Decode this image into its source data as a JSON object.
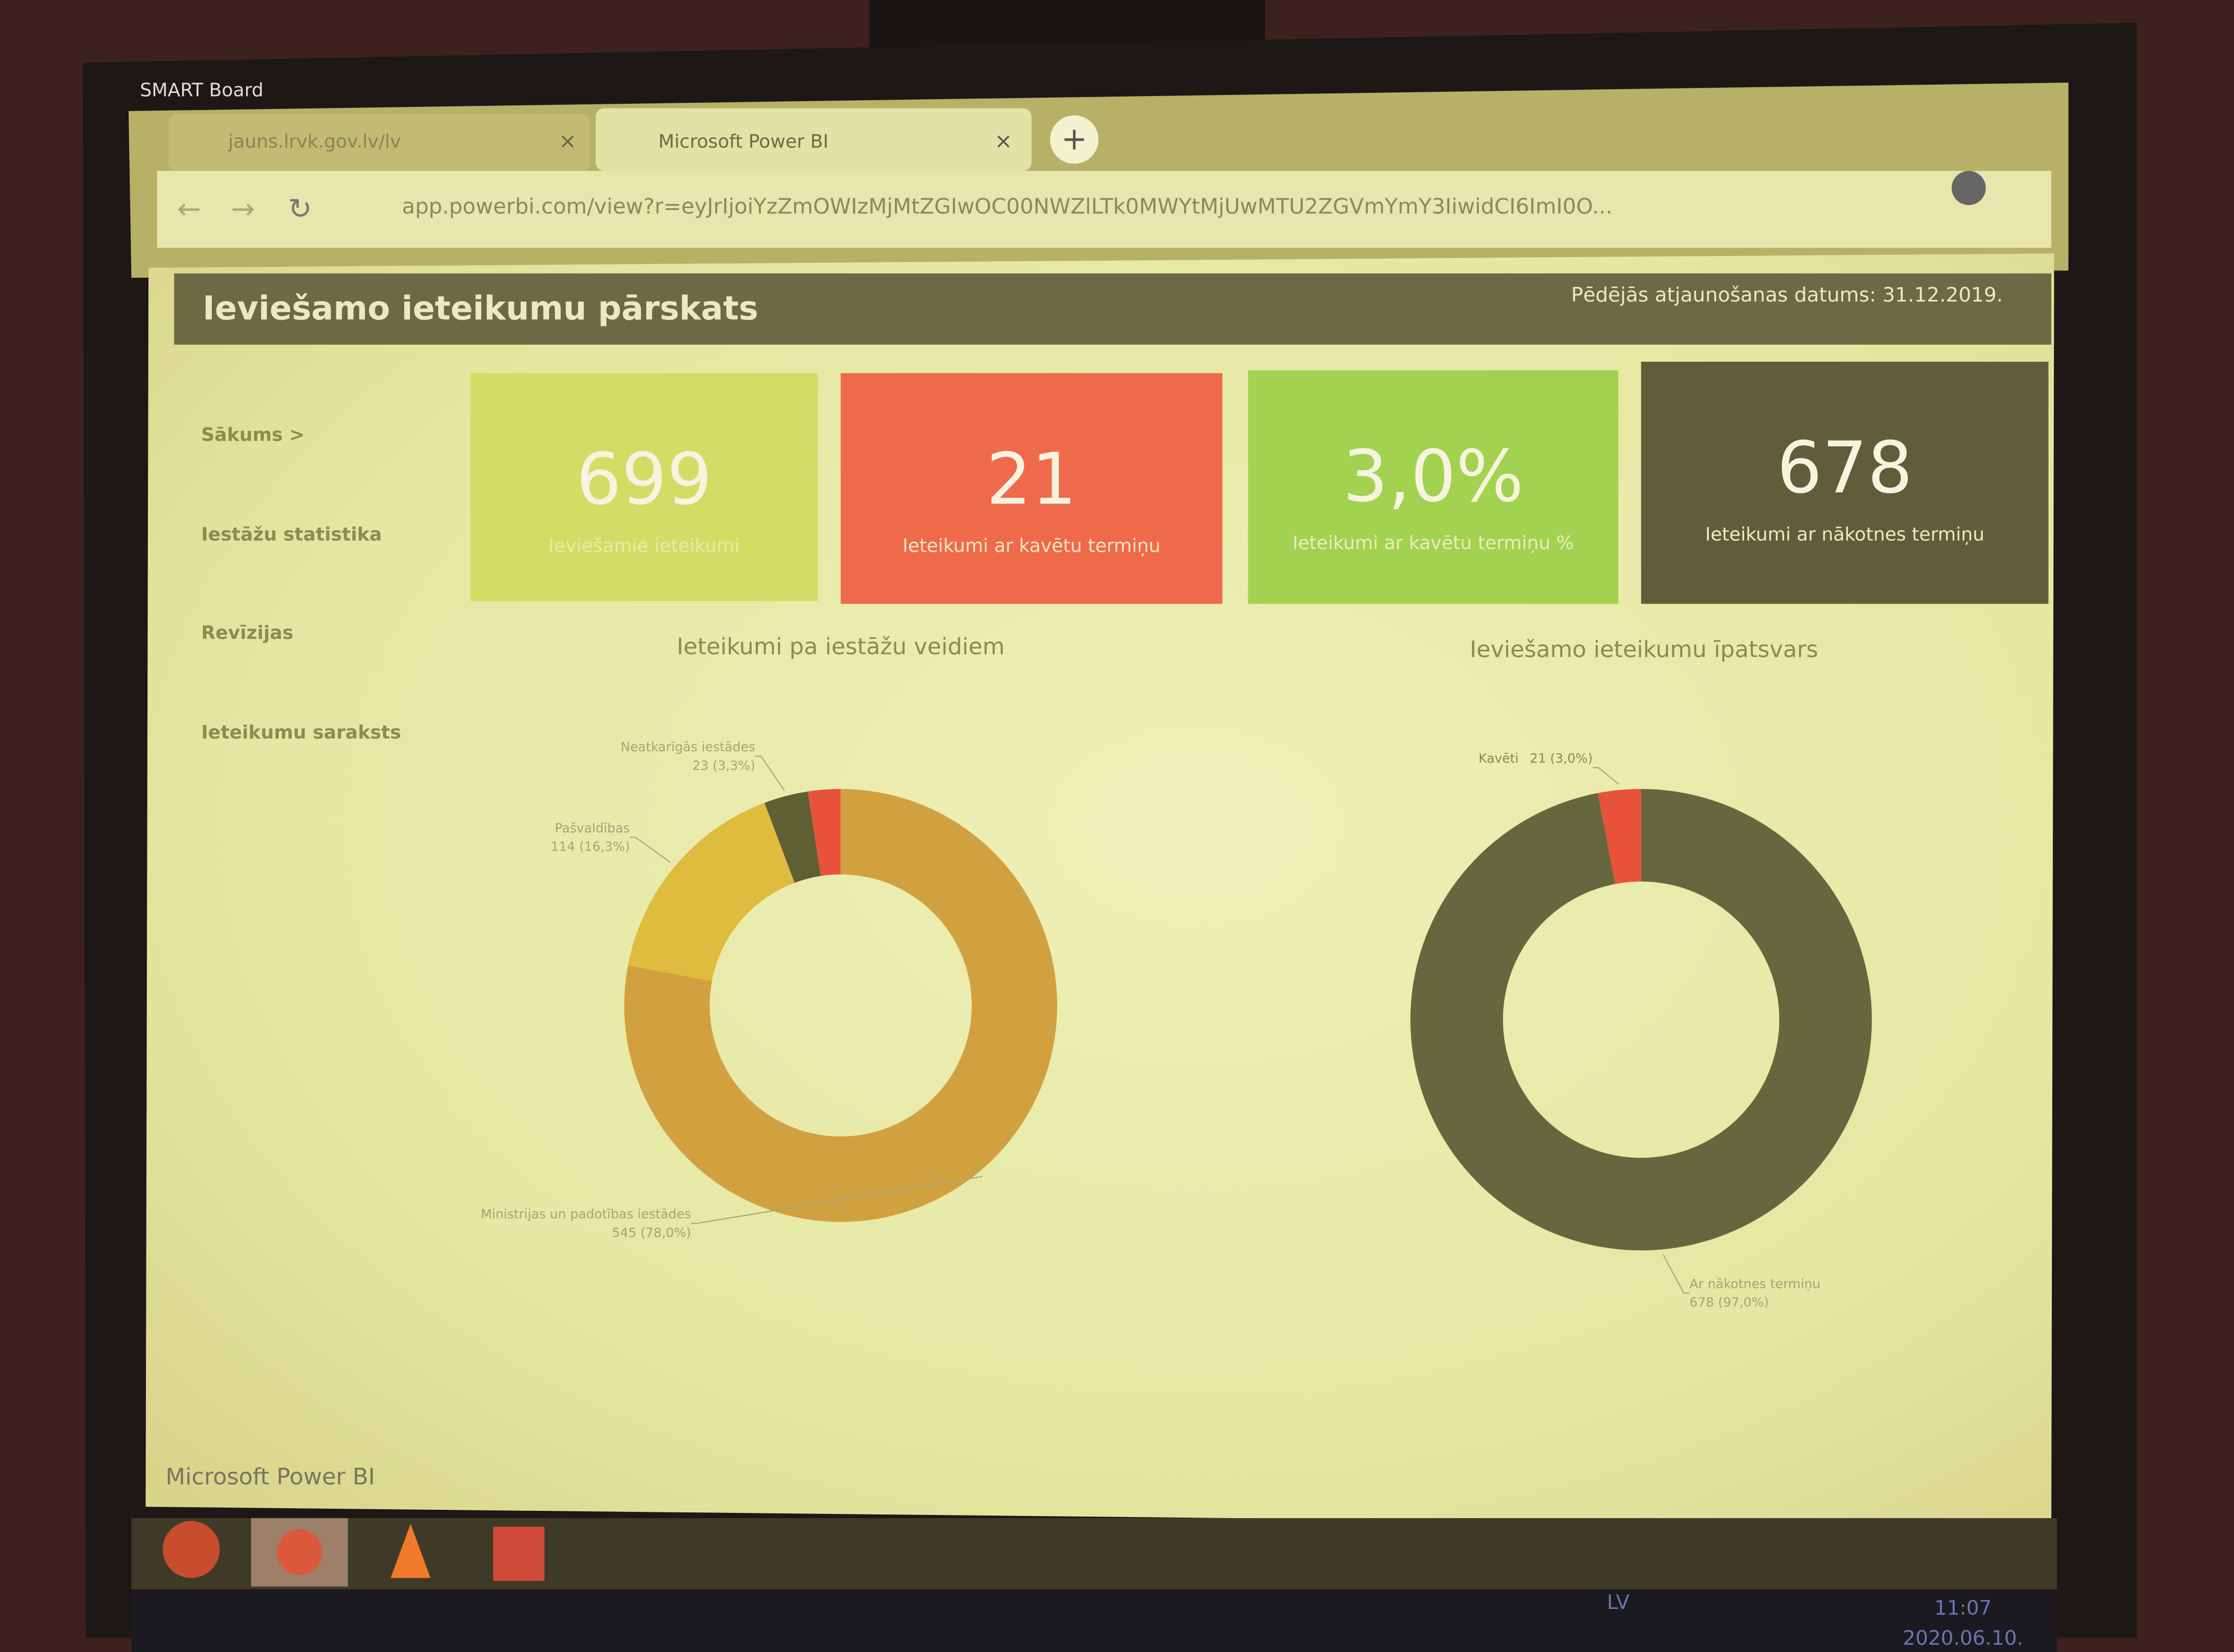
{
  "logo": "SMART Board",
  "browser": {
    "tabs": [
      "jauns.lrvk.gov.lv/lv",
      "Microsoft Power BI"
    ],
    "url": "app.powerbi.com/view?r=eyJrIjoiYzZmOWIzMjMtZGIwOC00NWZlLTk0MWYtMjUwMTU2ZGVmYmY3IiwidCI6ImI0O..."
  },
  "header": {
    "title": "Ieviešamo ieteikumu pārskats",
    "updated": "Pēdējās atjaunošanas datums: 31.12.2019."
  },
  "nav": [
    "Sākums >",
    "Iestāžu statistika",
    "Revīzijas",
    "Ieteikumu saraksts"
  ],
  "cards": [
    {
      "value": "699",
      "label": "Ieviešamie ieteikumi",
      "color": "#d4dc66"
    },
    {
      "value": "21",
      "label": "Ieteikumi ar kavētu termiņu",
      "color": "#ef6a4b"
    },
    {
      "value": "3,0%",
      "label": "Ieteikumi ar kavētu termiņu %",
      "color": "#a2d24f"
    },
    {
      "value": "678",
      "label": "Ieteikumi ar nākotnes termiņu",
      "color": "#5f5d3a"
    }
  ],
  "chart_data": [
    {
      "type": "pie",
      "title": "Ieteikumi pa iestāžu veidiem",
      "categories": [
        "Ministrijas un padotības iestādes",
        "Pašvaldības",
        "Neatkarīgās iestādes",
        null
      ],
      "values": [
        545,
        114,
        23,
        17
      ],
      "value_labels": [
        "545 (78,0%)",
        "114 (16,3%)",
        "23 (3,3%)",
        null
      ],
      "colors": [
        "#d2a13f",
        "#dfbb3e",
        "#5e5f32",
        "#e9523a"
      ]
    },
    {
      "type": "pie",
      "title": "Ieviešamo ieteikumu īpatsvars",
      "categories": [
        "Ar nākotnes termiņu",
        "Kavēti"
      ],
      "values": [
        678,
        21
      ],
      "value_labels": [
        "678 (97,0%)",
        "21 (3,0%)"
      ],
      "colors": [
        "#66673f",
        "#e9523a"
      ]
    }
  ],
  "footer": "Microsoft Power BI",
  "taskbar": {
    "language": "LV",
    "time": "11:07",
    "date": "2020.06.10."
  }
}
